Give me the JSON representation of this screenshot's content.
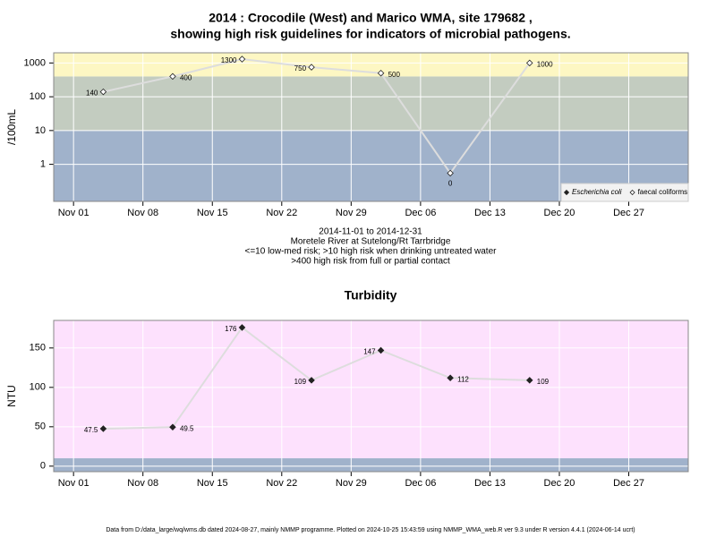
{
  "title": [
    "2014 : Crocodile (West) and Marico WMA, site 179682 ,",
    "showing high risk guidelines for indicators of microbial pathogens."
  ],
  "footer": "Data from D:/data_large/wq/wms.db dated 2024-08-27, mainly NMMP programme. Plotted on 2024-10-25 15:43:59 using NMMP_WMA_web.R ver 9.3 under R version 4.4.1 (2024-06-14 ucrt)",
  "chart_data": [
    {
      "type": "line",
      "ylabel": "/100mL",
      "log_scale": true,
      "grid": true,
      "subtitle": [
        "2014-11-01 to 2014-12-31",
        "Moretele River at Sutelong/Rt Tarrbridge",
        "<=10 low-med risk; >10 high risk when drinking untreated water",
        ">400 high risk from full or partial contact"
      ],
      "x": [
        "2014-11-04",
        "2014-11-11",
        "2014-11-18",
        "2014-11-25",
        "2014-12-02",
        "2014-12-09",
        "2014-12-17"
      ],
      "series": [
        {
          "name": "Escherichia coli",
          "marker": "filled",
          "color": "#333333",
          "values": [
            null,
            null,
            null,
            null,
            null,
            null,
            null
          ]
        },
        {
          "name": "faecal coliforms",
          "marker": "open",
          "color": "#dddddd",
          "values": [
            140,
            400,
            1300,
            750,
            500,
            0,
            1000
          ]
        }
      ],
      "bands": [
        {
          "from": 0.08,
          "to": 10,
          "color": "#a0b2cb"
        },
        {
          "from": 10,
          "to": 400,
          "color": "#c3ccc0"
        },
        {
          "from": 400,
          "to": 2000,
          "color": "#fdf7c3"
        }
      ],
      "xlim": [
        "2014-10-30",
        "2015-01-02"
      ],
      "xticks": [
        {
          "value": "2014-11-01",
          "label": "Nov 01"
        },
        {
          "value": "2014-11-08",
          "label": "Nov 08"
        },
        {
          "value": "2014-11-15",
          "label": "Nov 15"
        },
        {
          "value": "2014-11-22",
          "label": "Nov 22"
        },
        {
          "value": "2014-11-29",
          "label": "Nov 29"
        },
        {
          "value": "2014-12-06",
          "label": "Dec 06"
        },
        {
          "value": "2014-12-13",
          "label": "Dec 13"
        },
        {
          "value": "2014-12-20",
          "label": "Dec 20"
        },
        {
          "value": "2014-12-27",
          "label": "Dec 27"
        }
      ],
      "ylim": [
        0.08,
        2000
      ],
      "yticks": [
        1,
        10,
        100,
        1000
      ],
      "legend": "bottom-right"
    },
    {
      "type": "line",
      "title": "Turbidity",
      "ylabel": "NTU",
      "grid": true,
      "x": [
        "2014-11-04",
        "2014-11-11",
        "2014-11-18",
        "2014-11-25",
        "2014-12-02",
        "2014-12-09",
        "2014-12-17"
      ],
      "series": [
        {
          "name": "Turbidity",
          "marker": "filled",
          "color": "#dddddd",
          "values": [
            47.5,
            49.5,
            176,
            109,
            147,
            112,
            109
          ]
        }
      ],
      "bands": [
        {
          "from": -7,
          "to": 10,
          "color": "#a0b2cb"
        },
        {
          "from": 10,
          "to": 185,
          "color": "#fde1fd"
        }
      ],
      "xlim": [
        "2014-10-30",
        "2015-01-02"
      ],
      "xticks": [
        {
          "value": "2014-11-01",
          "label": "Nov 01"
        },
        {
          "value": "2014-11-08",
          "label": "Nov 08"
        },
        {
          "value": "2014-11-15",
          "label": "Nov 15"
        },
        {
          "value": "2014-11-22",
          "label": "Nov 22"
        },
        {
          "value": "2014-11-29",
          "label": "Nov 29"
        },
        {
          "value": "2014-12-06",
          "label": "Dec 06"
        },
        {
          "value": "2014-12-13",
          "label": "Dec 13"
        },
        {
          "value": "2014-12-20",
          "label": "Dec 20"
        },
        {
          "value": "2014-12-27",
          "label": "Dec 27"
        }
      ],
      "ylim": [
        -7,
        185
      ],
      "yticks": [
        0,
        50,
        100,
        150
      ]
    }
  ]
}
